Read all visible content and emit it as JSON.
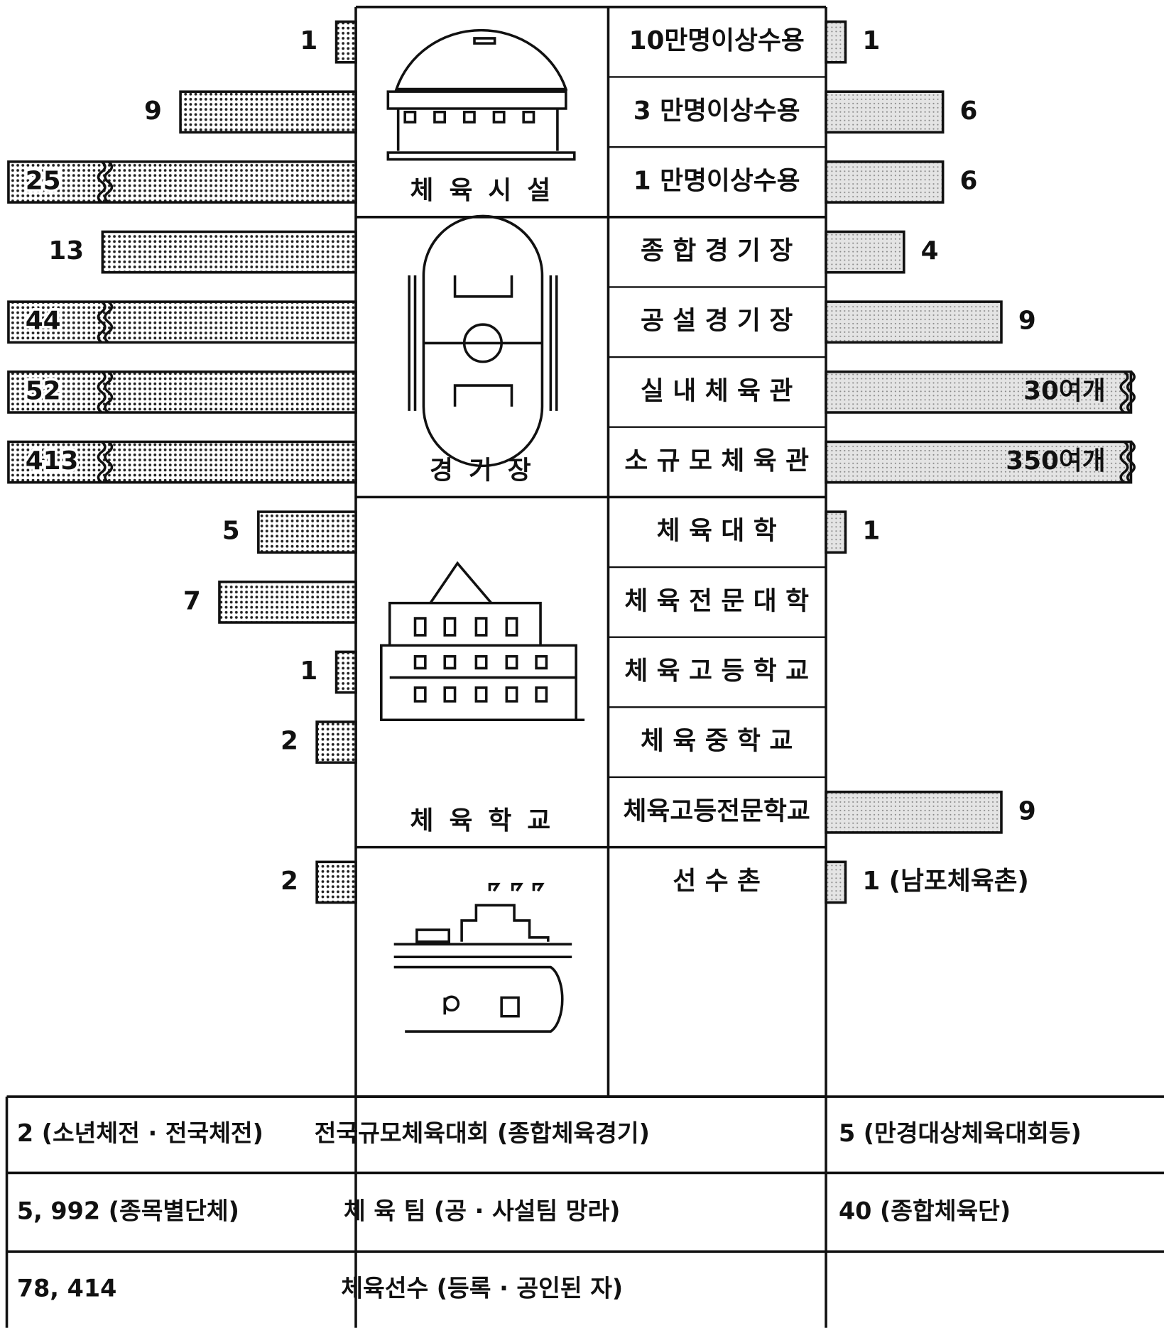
{
  "chart_data": {
    "type": "butterfly",
    "groups": [
      {
        "label": "체 육 시 설",
        "categories": [
          "10만명이상수용",
          "3 만명이상수용",
          "1 만명이상수용"
        ]
      },
      {
        "label": "경   기   장",
        "categories": [
          "종 합 경 기 장",
          "공 설 경 기 장",
          "실 내 체 육 관",
          "소 규 모 체 육 관"
        ]
      },
      {
        "label": "체 육 학 교",
        "categories": [
          "체  육  대  학",
          "체 육 전 문 대 학",
          "체 육 고 등 학 교",
          "체  육  중  학  교",
          "체육고등전문학교"
        ]
      },
      {
        "categories": [
          "선    수    촌"
        ]
      }
    ],
    "series": [
      {
        "color": "#b8b8b8",
        "values": [
          1,
          9,
          25,
          13,
          44,
          52,
          413,
          5,
          7,
          1,
          2,
          null,
          2
        ]
      },
      {
        "color": "#d4d4d4",
        "values": [
          1,
          6,
          6,
          4,
          9,
          30,
          350,
          1,
          null,
          null,
          null,
          9,
          1
        ],
        "value_labels": [
          null,
          null,
          null,
          null,
          null,
          "30여개",
          "350여개",
          null,
          null,
          null,
          null,
          null,
          "1 (남포체육촌)"
        ]
      }
    ]
  },
  "table": {
    "rows": [
      [
        "2 (소년체전 · 전국체전)",
        "전국규모체육대회 (종합체육경기)",
        "5 (만경대상체육대회등)"
      ],
      [
        "5, 992 (종목별단체)",
        "체 육 팀 (공 · 사설팀 망라)",
        "40 (종합체육단)"
      ],
      [
        "78, 414",
        "체육선수 (등록 · 공인된 자)",
        null
      ]
    ]
  }
}
